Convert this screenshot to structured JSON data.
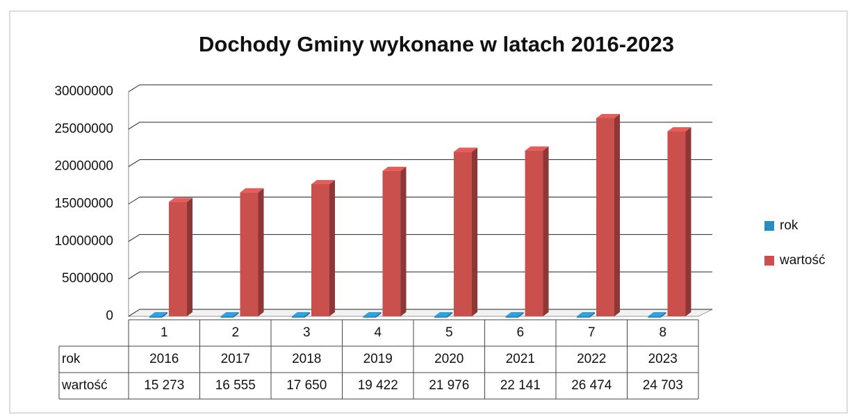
{
  "chart_data": {
    "type": "bar3d",
    "title": "Dochody Gminy wykonane  w latach 2016-2023",
    "categories": [
      "1",
      "2",
      "3",
      "4",
      "5",
      "6",
      "7",
      "8"
    ],
    "series": [
      {
        "name": "rok",
        "color": "#2a8cc4",
        "values": [
          2016,
          2017,
          2018,
          2019,
          2020,
          2021,
          2022,
          2023
        ]
      },
      {
        "name": "wartość",
        "color": "#c9504d",
        "values": [
          15273000,
          16555000,
          17650000,
          19422000,
          21976000,
          22141000,
          26474000,
          24703000
        ],
        "value_labels": [
          "15 273",
          "16 555",
          "17 650",
          "19 422",
          "21 976",
          "22 141",
          "26 474",
          "24 703"
        ]
      }
    ],
    "ylim": [
      0,
      30000000
    ],
    "yticks": [
      0,
      5000000,
      10000000,
      15000000,
      20000000,
      25000000,
      30000000
    ],
    "grid": true,
    "legend": "right"
  }
}
